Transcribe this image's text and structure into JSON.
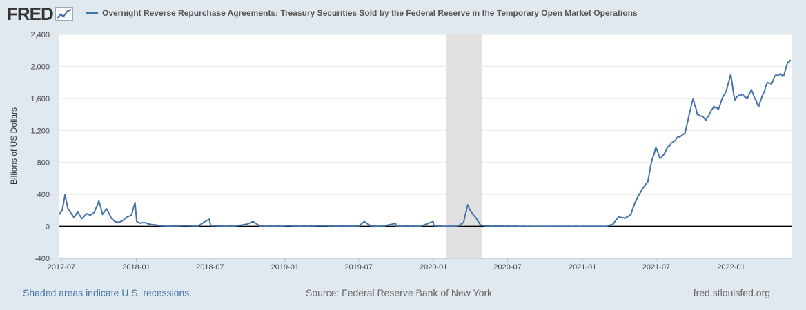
{
  "header": {
    "logo_text": "FRED",
    "logo_icon": "line-graph-icon",
    "title": "Overnight Reverse Repurchase Agreements: Treasury Securities Sold by the Federal Reserve in the Temporary Open Market Operations"
  },
  "footer": {
    "recession_note": "Shaded areas indicate U.S. recessions.",
    "source": "Source: Federal Reserve Bank of New York",
    "site": "fred.stlouisfed.org"
  },
  "colors": {
    "line": "#4572a7",
    "background": "#e1e9f0",
    "plot": "#ffffff",
    "recession": "#e1e1e1"
  },
  "chart_data": {
    "type": "line",
    "ylabel": "Billions of US Dollars",
    "ylim": [
      -400,
      2400
    ],
    "yticks": [
      -400,
      0,
      400,
      800,
      1200,
      1600,
      2000,
      2400
    ],
    "ytick_labels": [
      "-400",
      "0",
      "400",
      "800",
      "1,200",
      "1,600",
      "2,000",
      "2,400"
    ],
    "xlim": [
      "2017-06-26",
      "2022-05-31"
    ],
    "xticks": [
      "2017-07-01",
      "2018-01-01",
      "2018-07-01",
      "2019-01-01",
      "2019-07-01",
      "2020-01-01",
      "2020-07-01",
      "2021-01-01",
      "2021-07-01",
      "2022-01-01"
    ],
    "xtick_labels": [
      "2017-07",
      "2018-01",
      "2018-07",
      "2019-01",
      "2019-07",
      "2020-01",
      "2020-07",
      "2021-01",
      "2021-07",
      "2022-01"
    ],
    "grid": true,
    "recessions": [
      [
        "2020-02-01",
        "2020-04-30"
      ]
    ],
    "series": [
      {
        "x": [
          "2017-06-26",
          "2017-07-03",
          "2017-07-10",
          "2017-07-17",
          "2017-07-24",
          "2017-08-01",
          "2017-08-10",
          "2017-08-20",
          "2017-09-01",
          "2017-09-10",
          "2017-09-20",
          "2017-10-01",
          "2017-10-10",
          "2017-10-20",
          "2017-11-01",
          "2017-11-10",
          "2017-11-20",
          "2017-12-01",
          "2017-12-10",
          "2017-12-20",
          "2017-12-29",
          "2018-01-02",
          "2018-01-10",
          "2018-01-20",
          "2018-02-01",
          "2018-02-15",
          "2018-03-01",
          "2018-03-15",
          "2018-04-01",
          "2018-05-01",
          "2018-06-01",
          "2018-06-29",
          "2018-07-03",
          "2018-08-01",
          "2018-09-01",
          "2018-10-01",
          "2018-10-15",
          "2018-11-01",
          "2018-12-01",
          "2018-12-31",
          "2019-01-02",
          "2019-02-01",
          "2019-03-01",
          "2019-04-01",
          "2019-05-01",
          "2019-06-01",
          "2019-07-01",
          "2019-07-15",
          "2019-08-01",
          "2019-09-01",
          "2019-09-30",
          "2019-10-01",
          "2019-11-01",
          "2019-12-01",
          "2019-12-31",
          "2020-01-02",
          "2020-01-15",
          "2020-02-01",
          "2020-03-01",
          "2020-03-15",
          "2020-03-25",
          "2020-03-31",
          "2020-04-07",
          "2020-04-15",
          "2020-04-25",
          "2020-05-10",
          "2020-06-01",
          "2020-07-01",
          "2020-08-01",
          "2020-09-01",
          "2020-10-01",
          "2020-11-01",
          "2020-12-01",
          "2021-01-01",
          "2021-02-01",
          "2021-03-01",
          "2021-03-17",
          "2021-03-31",
          "2021-04-15",
          "2021-04-30",
          "2021-05-10",
          "2021-05-20",
          "2021-05-31",
          "2021-06-10",
          "2021-06-17",
          "2021-06-30",
          "2021-07-10",
          "2021-07-20",
          "2021-07-31",
          "2021-08-10",
          "2021-08-20",
          "2021-08-31",
          "2021-09-10",
          "2021-09-20",
          "2021-09-30",
          "2021-10-10",
          "2021-10-20",
          "2021-10-31",
          "2021-11-10",
          "2021-11-20",
          "2021-11-30",
          "2021-12-10",
          "2021-12-20",
          "2021-12-31",
          "2022-01-10",
          "2022-01-20",
          "2022-01-31",
          "2022-02-10",
          "2022-02-20",
          "2022-02-28",
          "2022-03-10",
          "2022-03-20",
          "2022-03-31",
          "2022-04-10",
          "2022-04-20",
          "2022-04-30",
          "2022-05-10",
          "2022-05-20",
          "2022-05-27"
        ],
        "y": [
          150,
          200,
          400,
          220,
          170,
          110,
          180,
          95,
          160,
          140,
          175,
          320,
          150,
          220,
          100,
          60,
          50,
          80,
          120,
          140,
          300,
          60,
          40,
          50,
          30,
          20,
          10,
          5,
          5,
          10,
          5,
          90,
          10,
          5,
          5,
          30,
          60,
          5,
          5,
          5,
          10,
          5,
          5,
          10,
          5,
          5,
          5,
          60,
          5,
          5,
          40,
          5,
          5,
          5,
          60,
          10,
          5,
          3,
          5,
          50,
          270,
          200,
          150,
          100,
          20,
          5,
          5,
          5,
          3,
          3,
          3,
          3,
          3,
          3,
          3,
          3,
          30,
          120,
          100,
          150,
          300,
          400,
          490,
          550,
          750,
          990,
          850,
          900,
          1000,
          1050,
          1100,
          1130,
          1170,
          1400,
          1600,
          1400,
          1380,
          1330,
          1420,
          1500,
          1460,
          1600,
          1690,
          1900,
          1580,
          1640,
          1640,
          1600,
          1710,
          1600,
          1500,
          1650,
          1800,
          1780,
          1890,
          1900,
          1880,
          2050,
          2080
        ]
      }
    ]
  }
}
